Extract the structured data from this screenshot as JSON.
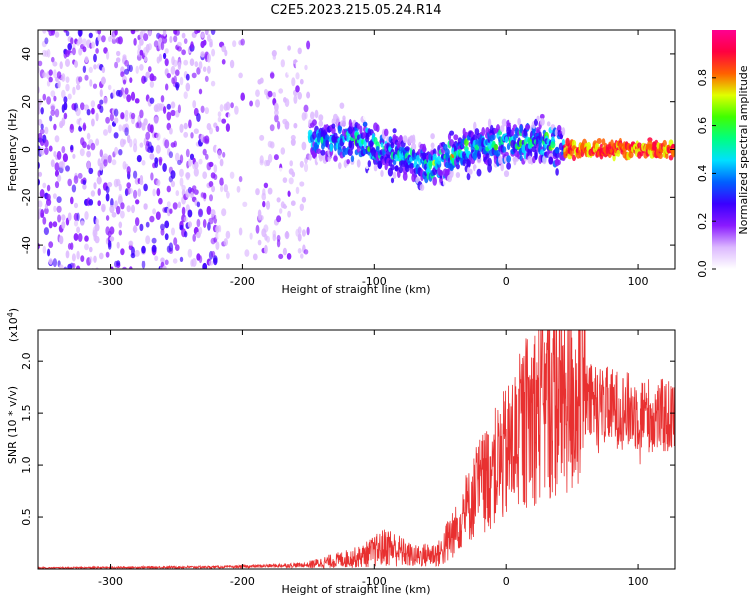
{
  "title": "C2E5.2023.215.05.24.R14",
  "chart_data": [
    {
      "type": "heatmap",
      "title": "C2E5.2023.215.05.24.R14",
      "xlabel": "Height of straight line (km)",
      "ylabel": "Frequency (Hz)",
      "xlim": [
        -355,
        128
      ],
      "ylim": [
        -50,
        50
      ],
      "xticks": [
        -300,
        -200,
        -100,
        0,
        100
      ],
      "yticks": [
        -40,
        -20,
        0,
        20,
        40
      ],
      "colorbar": {
        "label": "Normalized spectral amplitude",
        "range": [
          0.0,
          1.0
        ],
        "ticks": [
          "0.0",
          "0.2",
          "0.4",
          "0.6",
          "0.8"
        ],
        "stops": [
          "#ffffff",
          "#dcb8ff",
          "#8a1aff",
          "#3a00ff",
          "#0060ff",
          "#00e0ff",
          "#00ff80",
          "#40ff00",
          "#e0ff00",
          "#ff6000",
          "#ff0040",
          "#ff0090"
        ]
      },
      "ridge_center": [
        [
          -220,
          3
        ],
        [
          -150,
          5
        ],
        [
          -110,
          3
        ],
        [
          -60,
          -7
        ],
        [
          -30,
          0
        ],
        [
          0,
          3
        ],
        [
          30,
          3
        ],
        [
          45,
          0
        ],
        [
          128,
          0
        ]
      ]
    },
    {
      "type": "line",
      "xlabel": "Height of straight line (km)",
      "ylabel": "SNR (10 * v/v)",
      "y_multiplier_label": "(x10",
      "y_multiplier_exp": "4",
      "xlim": [
        -355,
        128
      ],
      "ylim": [
        0,
        2.3
      ],
      "xticks": [
        -300,
        -200,
        -100,
        0,
        100
      ],
      "yticks": [
        "0.5",
        "1.0",
        "1.5",
        "2.0"
      ],
      "color": "#e83030",
      "envelope": [
        {
          "x": -355,
          "y": 0.01
        },
        {
          "x": -210,
          "y": 0.02
        },
        {
          "x": -150,
          "y": 0.04
        },
        {
          "x": -110,
          "y": 0.12
        },
        {
          "x": -90,
          "y": 0.22
        },
        {
          "x": -70,
          "y": 0.12
        },
        {
          "x": -50,
          "y": 0.15
        },
        {
          "x": -35,
          "y": 0.45
        },
        {
          "x": -20,
          "y": 0.8
        },
        {
          "x": 0,
          "y": 1.1
        },
        {
          "x": 20,
          "y": 1.5
        },
        {
          "x": 40,
          "y": 1.65
        },
        {
          "x": 60,
          "y": 1.6
        },
        {
          "x": 80,
          "y": 1.55
        },
        {
          "x": 100,
          "y": 1.5
        },
        {
          "x": 128,
          "y": 1.45
        }
      ]
    }
  ]
}
